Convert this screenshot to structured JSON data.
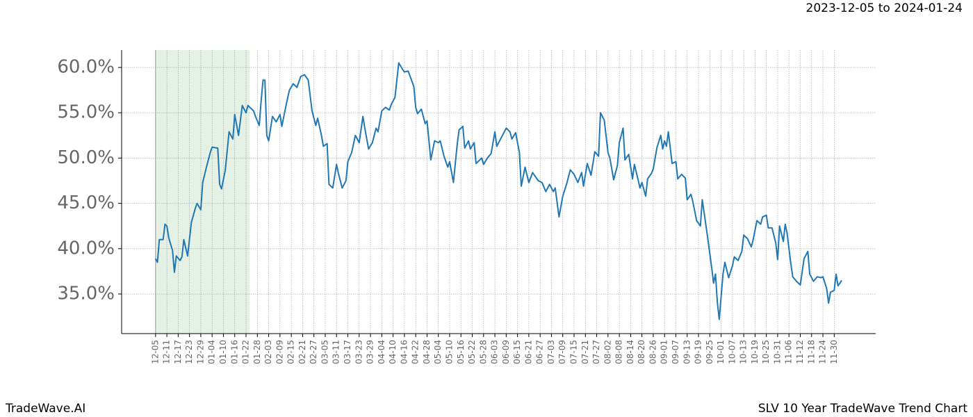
{
  "chart_data": {
    "type": "line",
    "date_range": "2023-12-05 to 2024-01-24",
    "brand": "TradeWave.AI",
    "caption": "SLV 10 Year TradeWave Trend Chart",
    "color": "#1f77b4",
    "highlight_span": [
      0,
      50
    ],
    "highlight_color": "#e5f1e5",
    "grid": true,
    "xlim": [
      -18,
      382
    ],
    "ylim": [
      30.63,
      61.92
    ],
    "yticks": [
      {
        "value": 35,
        "label": "35.0%"
      },
      {
        "value": 40,
        "label": "40.0%"
      },
      {
        "value": 45,
        "label": "45.0%"
      },
      {
        "value": 50,
        "label": "50.0%"
      },
      {
        "value": 55,
        "label": "55.0%"
      },
      {
        "value": 60,
        "label": "60.0%"
      }
    ],
    "xticks": [
      {
        "value": 0,
        "label": "12-05"
      },
      {
        "value": 6,
        "label": "12-11"
      },
      {
        "value": 12,
        "label": "12-17"
      },
      {
        "value": 18,
        "label": "12-23"
      },
      {
        "value": 24,
        "label": "12-29"
      },
      {
        "value": 30,
        "label": "01-04"
      },
      {
        "value": 36,
        "label": "01-10"
      },
      {
        "value": 42,
        "label": "01-16"
      },
      {
        "value": 48,
        "label": "01-22"
      },
      {
        "value": 54,
        "label": "01-28"
      },
      {
        "value": 60,
        "label": "02-03"
      },
      {
        "value": 66,
        "label": "02-09"
      },
      {
        "value": 72,
        "label": "02-15"
      },
      {
        "value": 78,
        "label": "02-21"
      },
      {
        "value": 84,
        "label": "02-27"
      },
      {
        "value": 90,
        "label": "03-05"
      },
      {
        "value": 96,
        "label": "03-11"
      },
      {
        "value": 102,
        "label": "03-17"
      },
      {
        "value": 108,
        "label": "03-23"
      },
      {
        "value": 114,
        "label": "03-29"
      },
      {
        "value": 120,
        "label": "04-04"
      },
      {
        "value": 126,
        "label": "04-10"
      },
      {
        "value": 132,
        "label": "04-16"
      },
      {
        "value": 138,
        "label": "04-22"
      },
      {
        "value": 144,
        "label": "04-28"
      },
      {
        "value": 150,
        "label": "05-04"
      },
      {
        "value": 156,
        "label": "05-10"
      },
      {
        "value": 162,
        "label": "05-16"
      },
      {
        "value": 168,
        "label": "05-22"
      },
      {
        "value": 174,
        "label": "05-28"
      },
      {
        "value": 180,
        "label": "06-03"
      },
      {
        "value": 186,
        "label": "06-09"
      },
      {
        "value": 192,
        "label": "06-15"
      },
      {
        "value": 198,
        "label": "06-21"
      },
      {
        "value": 204,
        "label": "06-27"
      },
      {
        "value": 210,
        "label": "07-03"
      },
      {
        "value": 216,
        "label": "07-09"
      },
      {
        "value": 222,
        "label": "07-15"
      },
      {
        "value": 228,
        "label": "07-21"
      },
      {
        "value": 234,
        "label": "07-27"
      },
      {
        "value": 240,
        "label": "08-02"
      },
      {
        "value": 246,
        "label": "08-08"
      },
      {
        "value": 252,
        "label": "08-14"
      },
      {
        "value": 258,
        "label": "08-20"
      },
      {
        "value": 264,
        "label": "08-26"
      },
      {
        "value": 270,
        "label": "09-01"
      },
      {
        "value": 276,
        "label": "09-07"
      },
      {
        "value": 282,
        "label": "09-13"
      },
      {
        "value": 288,
        "label": "09-19"
      },
      {
        "value": 294,
        "label": "09-25"
      },
      {
        "value": 300,
        "label": "10-01"
      },
      {
        "value": 306,
        "label": "10-07"
      },
      {
        "value": 312,
        "label": "10-13"
      },
      {
        "value": 318,
        "label": "10-19"
      },
      {
        "value": 324,
        "label": "10-25"
      },
      {
        "value": 330,
        "label": "10-31"
      },
      {
        "value": 336,
        "label": "11-06"
      },
      {
        "value": 342,
        "label": "11-12"
      },
      {
        "value": 348,
        "label": "11-18"
      },
      {
        "value": 354,
        "label": "11-24"
      },
      {
        "value": 360,
        "label": "11-30"
      }
    ],
    "x": [
      0,
      1,
      2,
      4,
      5,
      6,
      7,
      9,
      10,
      11,
      13,
      14,
      15,
      17,
      19,
      21,
      22,
      24,
      25,
      27,
      29,
      30,
      33,
      34,
      35,
      37,
      39,
      41,
      42,
      44,
      46,
      48,
      49,
      52,
      53,
      55,
      56,
      57,
      58,
      59,
      60,
      62,
      64,
      66,
      67,
      69,
      71,
      73,
      75,
      77,
      79,
      81,
      83,
      85,
      86,
      88,
      89,
      91,
      92,
      94,
      96,
      97,
      99,
      101,
      102,
      104,
      106,
      108,
      110,
      111,
      113,
      115,
      117,
      118,
      120,
      122,
      124,
      125,
      127,
      129,
      131,
      132,
      134,
      137,
      138,
      139,
      141,
      143,
      144,
      146,
      148,
      150,
      151,
      153,
      155,
      156,
      158,
      160,
      161,
      163,
      164,
      166,
      167,
      169,
      170,
      173,
      174,
      176,
      178,
      180,
      181,
      184,
      186,
      188,
      189,
      191,
      193,
      194,
      196,
      198,
      200,
      203,
      205,
      207,
      209,
      211,
      212,
      214,
      216,
      218,
      220,
      222,
      224,
      226,
      227,
      229,
      231,
      233,
      235,
      236,
      238,
      240,
      241,
      243,
      245,
      246,
      248,
      249,
      251,
      253,
      254,
      257,
      258,
      260,
      261,
      263,
      264,
      266,
      268,
      269,
      270,
      271,
      272,
      274,
      276,
      277,
      279,
      281,
      282,
      284,
      285,
      287,
      289,
      290,
      292,
      293,
      295,
      296,
      297,
      298,
      299,
      301,
      302,
      304,
      306,
      307,
      309,
      311,
      312,
      314,
      316,
      317,
      319,
      321,
      322,
      324,
      325,
      327,
      329,
      330,
      331,
      333,
      334,
      335,
      337,
      338,
      340,
      342,
      344,
      346,
      347,
      349,
      351,
      353,
      354,
      356,
      357,
      358,
      360,
      361,
      362,
      364
    ],
    "values": [
      38.9,
      38.5,
      41.0,
      41.0,
      42.7,
      42.5,
      41.2,
      39.8,
      37.4,
      39.2,
      38.7,
      39.1,
      41.0,
      39.2,
      42.9,
      44.4,
      45.0,
      44.3,
      47.3,
      49.0,
      50.6,
      51.2,
      51.1,
      47.1,
      46.6,
      48.7,
      52.9,
      52.1,
      54.8,
      52.5,
      55.8,
      55.0,
      55.8,
      55.2,
      54.6,
      53.6,
      56.3,
      58.6,
      58.6,
      52.5,
      51.9,
      54.6,
      54.0,
      54.8,
      53.5,
      55.6,
      57.5,
      58.2,
      57.8,
      59.0,
      59.2,
      58.6,
      55.2,
      53.6,
      54.4,
      52.5,
      51.3,
      51.6,
      47.1,
      46.7,
      49.3,
      48.3,
      46.7,
      47.5,
      49.6,
      50.6,
      52.5,
      51.7,
      54.6,
      53.3,
      51.0,
      51.7,
      53.3,
      52.9,
      55.2,
      55.6,
      55.3,
      55.9,
      56.7,
      60.5,
      59.8,
      59.5,
      59.6,
      57.9,
      55.6,
      54.9,
      55.4,
      53.8,
      54.1,
      49.8,
      51.9,
      51.7,
      51.9,
      50.2,
      49.0,
      49.6,
      47.3,
      51.5,
      53.1,
      53.5,
      51.1,
      51.9,
      51.0,
      51.7,
      49.4,
      50.0,
      49.3,
      50.0,
      50.5,
      52.9,
      51.3,
      52.5,
      53.3,
      52.9,
      52.1,
      52.8,
      50.6,
      46.9,
      49.0,
      47.3,
      48.4,
      47.5,
      47.3,
      46.3,
      47.1,
      46.3,
      46.7,
      43.5,
      45.8,
      47.1,
      48.7,
      48.2,
      47.3,
      48.4,
      46.9,
      49.4,
      48.1,
      50.7,
      50.2,
      55.0,
      54.2,
      50.6,
      50.0,
      47.6,
      49.2,
      51.7,
      53.3,
      49.8,
      50.4,
      47.7,
      49.3,
      46.7,
      47.3,
      45.8,
      47.7,
      48.3,
      48.8,
      51.2,
      52.5,
      51.0,
      51.9,
      51.3,
      52.9,
      49.4,
      49.6,
      47.7,
      48.2,
      47.8,
      45.4,
      46.0,
      45.2,
      43.1,
      42.5,
      45.4,
      42.5,
      41.0,
      37.9,
      36.2,
      37.2,
      34.1,
      32.2,
      37.2,
      38.5,
      36.8,
      38.1,
      39.1,
      38.7,
      39.7,
      41.5,
      41.1,
      40.2,
      41.0,
      43.1,
      42.7,
      43.5,
      43.7,
      42.3,
      42.3,
      40.6,
      38.8,
      42.5,
      40.8,
      42.7,
      41.7,
      38.3,
      36.9,
      36.4,
      36.0,
      38.9,
      39.7,
      37.2,
      36.4,
      36.9,
      36.8,
      36.9,
      35.6,
      34.0,
      35.2,
      35.4,
      37.2,
      35.9,
      36.5
    ]
  }
}
